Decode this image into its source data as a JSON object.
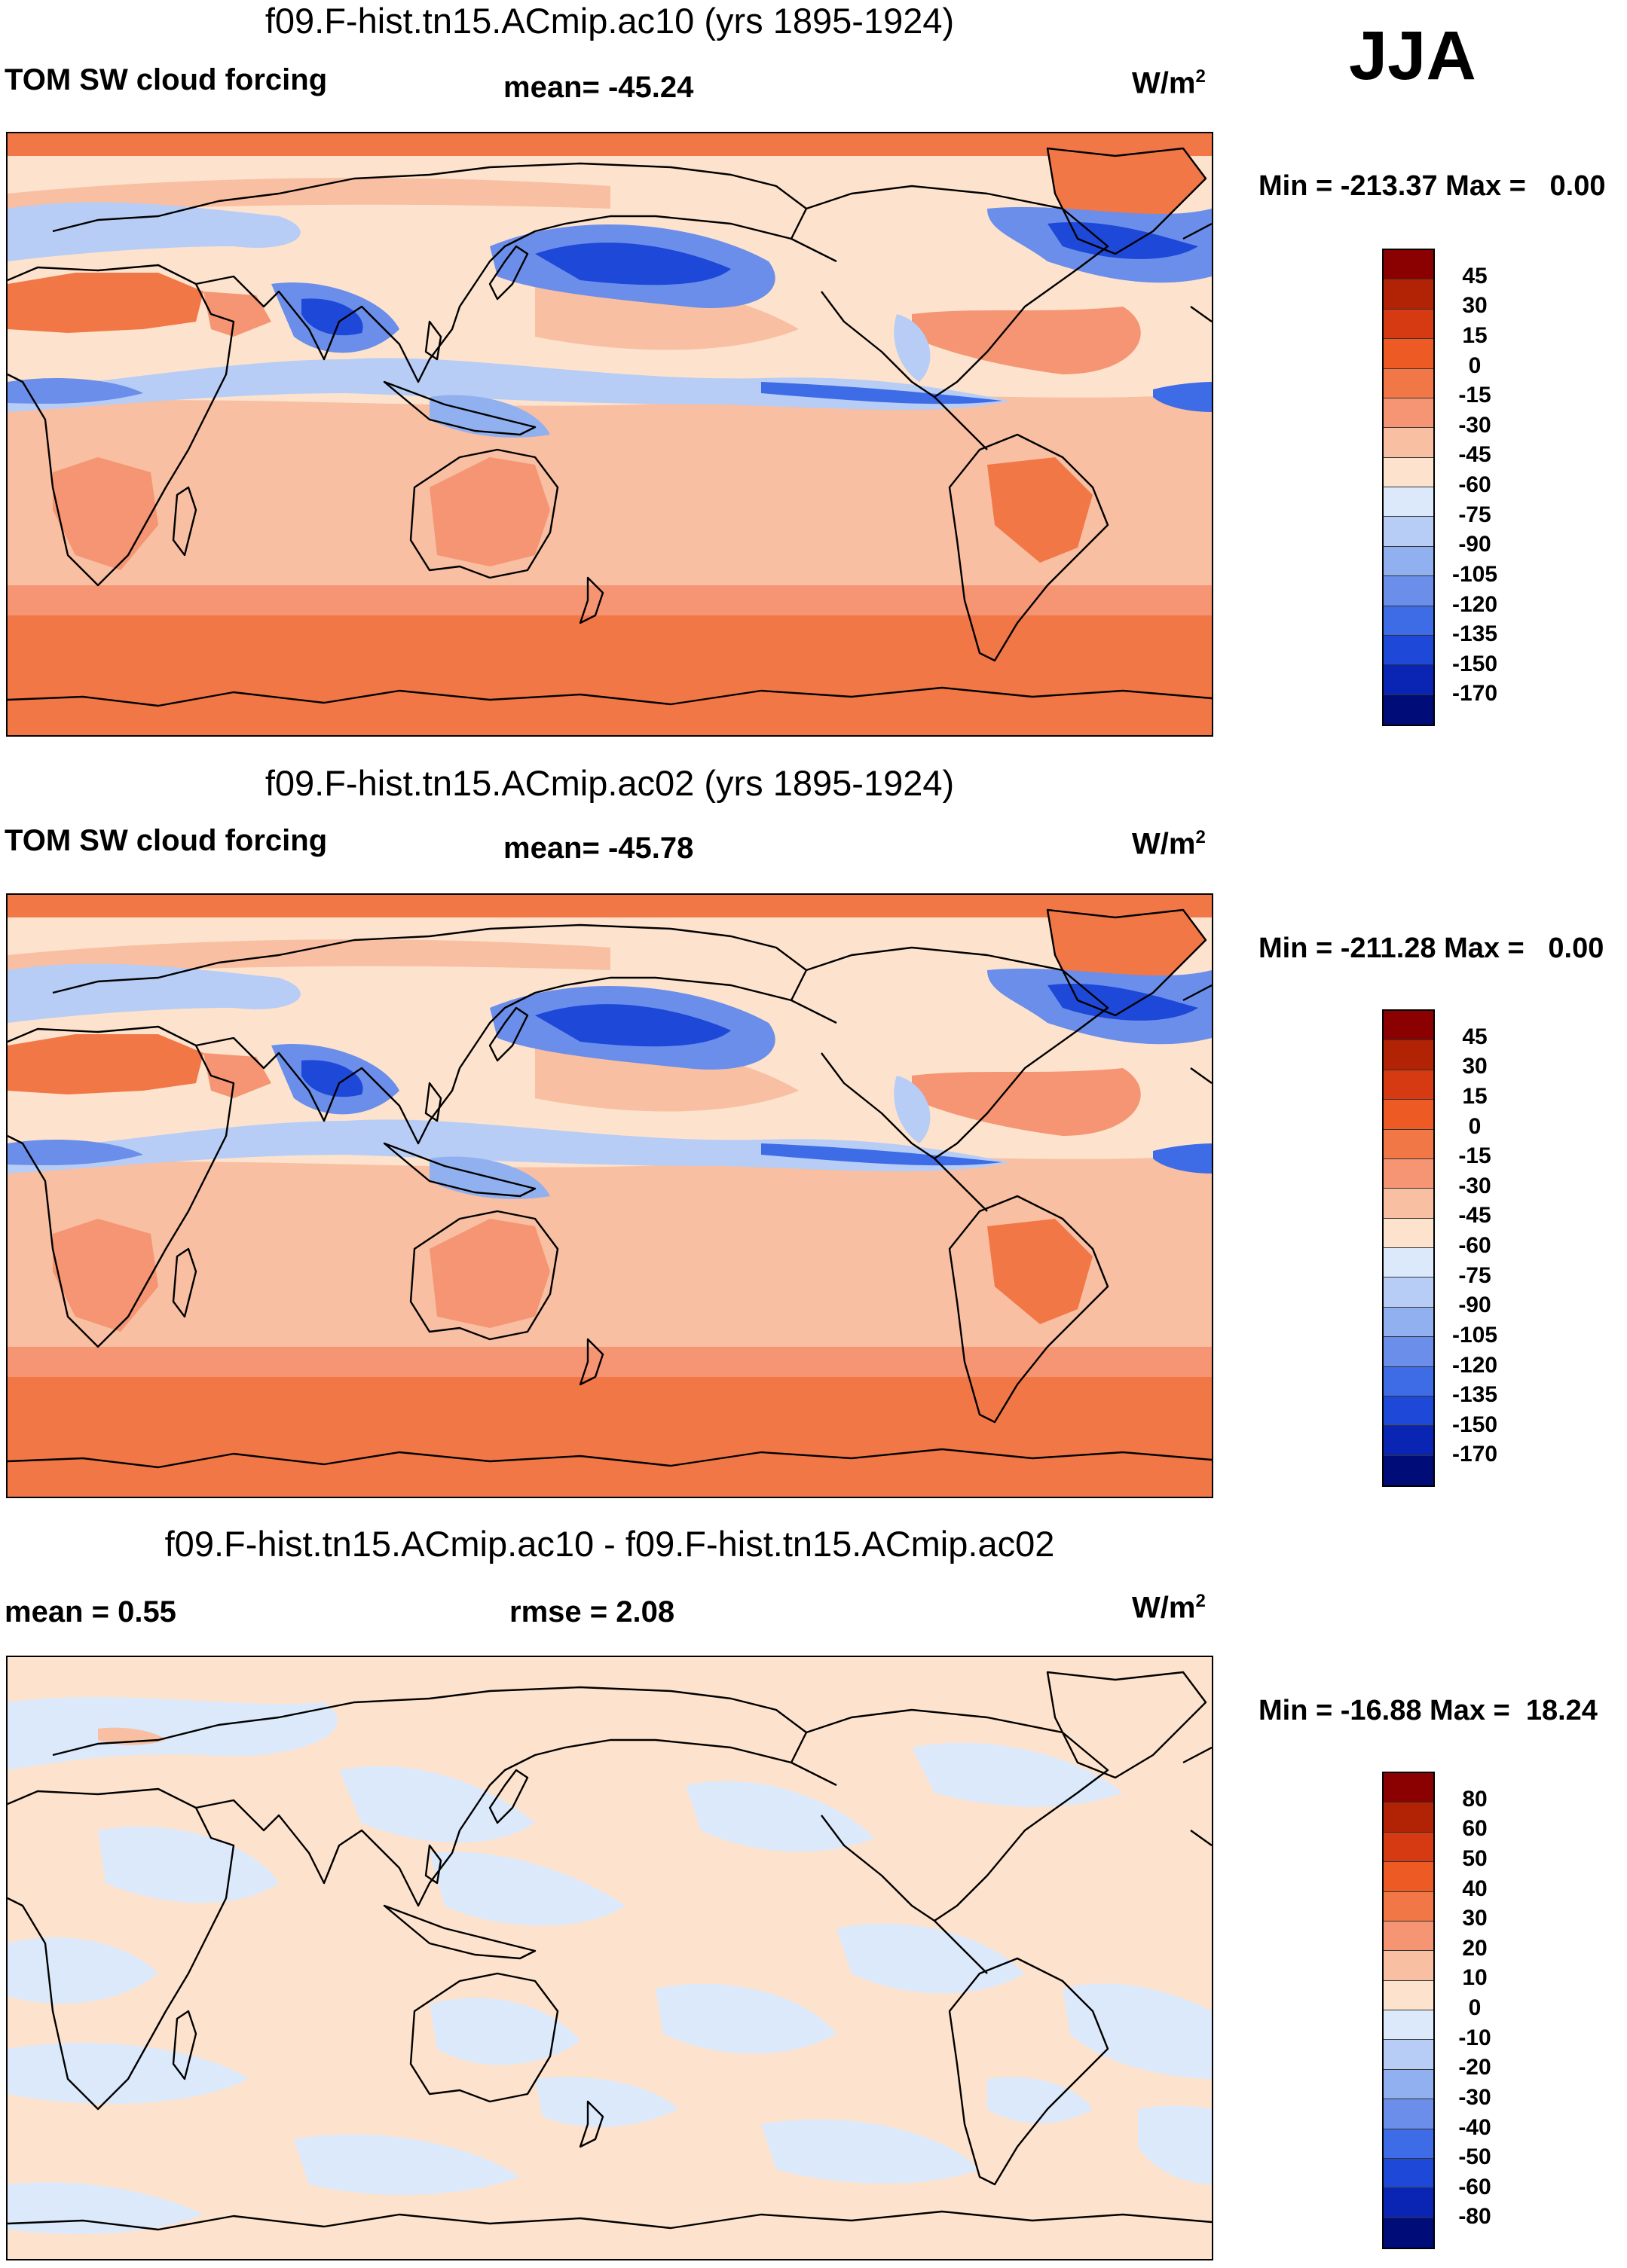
{
  "season": "JJA",
  "panels": [
    {
      "title": "f09.F-hist.tn15.ACmip.ac10 (yrs 1895-1924)",
      "left_label": "TOM SW cloud forcing",
      "mid_label": "mean= -45.24",
      "unit": "W/m",
      "unit_sup": "2",
      "minmax": "Min = -213.37 Max =   0.00",
      "colorbar": {
        "labels": [
          "45",
          "30",
          "15",
          "0",
          "-15",
          "-30",
          "-45",
          "-60",
          "-75",
          "-90",
          "-105",
          "-120",
          "-135",
          "-150",
          "-170"
        ],
        "colors": [
          "#8b0000",
          "#b22204",
          "#d53a12",
          "#ee5a24",
          "#f27746",
          "#f59573",
          "#f8bfa2",
          "#fde3cd",
          "#dbe9fb",
          "#b7cdf5",
          "#90b0ef",
          "#6a8ee9",
          "#3e6be6",
          "#1d48d8",
          "#0a25b3",
          "#000c78"
        ]
      },
      "map": {
        "style": "full",
        "variant": 1
      }
    },
    {
      "title": "f09.F-hist.tn15.ACmip.ac02 (yrs 1895-1924)",
      "left_label": "TOM SW cloud forcing",
      "mid_label": "mean= -45.78",
      "unit": "W/m",
      "unit_sup": "2",
      "minmax": "Min = -211.28 Max =   0.00",
      "colorbar": {
        "labels": [
          "45",
          "30",
          "15",
          "0",
          "-15",
          "-30",
          "-45",
          "-60",
          "-75",
          "-90",
          "-105",
          "-120",
          "-135",
          "-150",
          "-170"
        ],
        "colors": [
          "#8b0000",
          "#b22204",
          "#d53a12",
          "#ee5a24",
          "#f27746",
          "#f59573",
          "#f8bfa2",
          "#fde3cd",
          "#dbe9fb",
          "#b7cdf5",
          "#90b0ef",
          "#6a8ee9",
          "#3e6be6",
          "#1d48d8",
          "#0a25b3",
          "#000c78"
        ]
      },
      "map": {
        "style": "full",
        "variant": 2
      }
    },
    {
      "title": "f09.F-hist.tn15.ACmip.ac10 - f09.F-hist.tn15.ACmip.ac02",
      "left_label": "mean =   0.55",
      "mid_label": "rmse =   2.08",
      "unit": "W/m",
      "unit_sup": "2",
      "minmax": "Min = -16.88 Max =  18.24",
      "colorbar": {
        "labels": [
          "80",
          "60",
          "50",
          "40",
          "30",
          "20",
          "10",
          "0",
          "-10",
          "-20",
          "-30",
          "-40",
          "-50",
          "-60",
          "-80"
        ],
        "colors": [
          "#8b0000",
          "#b22204",
          "#d53a12",
          "#ee5a24",
          "#f27746",
          "#f59573",
          "#f8bfa2",
          "#fde3cd",
          "#dbe9fb",
          "#b7cdf5",
          "#90b0ef",
          "#6a8ee9",
          "#3e6be6",
          "#1d48d8",
          "#0a25b3",
          "#000c78"
        ]
      },
      "map": {
        "style": "diff",
        "variant": 3
      }
    }
  ]
}
